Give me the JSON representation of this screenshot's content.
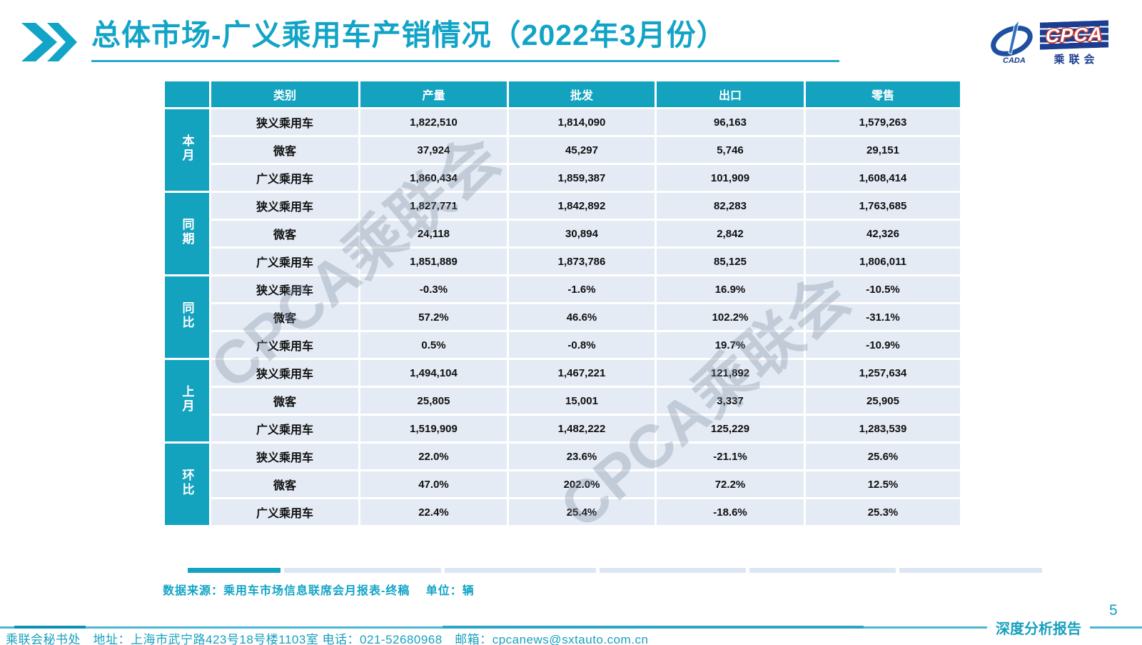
{
  "title": "总体市场-广义乘用车产销情况（2022年3月份）",
  "watermark_text": "CPCA乘联会",
  "logo": {
    "cada": "CADA",
    "cpca": "CPCA",
    "cpca_cn": "乘联会"
  },
  "table": {
    "columns": [
      "类别",
      "产量",
      "批发",
      "出口",
      "零售"
    ],
    "groups": [
      {
        "label": "本月",
        "rows": [
          {
            "category": "狭义乘用车",
            "values": [
              "1,822,510",
              "1,814,090",
              "96,163",
              "1,579,263"
            ]
          },
          {
            "category": "微客",
            "values": [
              "37,924",
              "45,297",
              "5,746",
              "29,151"
            ]
          },
          {
            "category": "广义乘用车",
            "values": [
              "1,860,434",
              "1,859,387",
              "101,909",
              "1,608,414"
            ]
          }
        ]
      },
      {
        "label": "同期",
        "rows": [
          {
            "category": "狭义乘用车",
            "values": [
              "1,827,771",
              "1,842,892",
              "82,283",
              "1,763,685"
            ]
          },
          {
            "category": "微客",
            "values": [
              "24,118",
              "30,894",
              "2,842",
              "42,326"
            ]
          },
          {
            "category": "广义乘用车",
            "values": [
              "1,851,889",
              "1,873,786",
              "85,125",
              "1,806,011"
            ]
          }
        ]
      },
      {
        "label": "同比",
        "rows": [
          {
            "category": "狭义乘用车",
            "values": [
              "-0.3%",
              "-1.6%",
              "16.9%",
              "-10.5%"
            ]
          },
          {
            "category": "微客",
            "values": [
              "57.2%",
              "46.6%",
              "102.2%",
              "-31.1%"
            ]
          },
          {
            "category": "广义乘用车",
            "values": [
              "0.5%",
              "-0.8%",
              "19.7%",
              "-10.9%"
            ]
          }
        ]
      },
      {
        "label": "上月",
        "rows": [
          {
            "category": "狭义乘用车",
            "values": [
              "1,494,104",
              "1,467,221",
              "121,892",
              "1,257,634"
            ]
          },
          {
            "category": "微客",
            "values": [
              "25,805",
              "15,001",
              "3,337",
              "25,905"
            ]
          },
          {
            "category": "广义乘用车",
            "values": [
              "1,519,909",
              "1,482,222",
              "125,229",
              "1,283,539"
            ]
          }
        ]
      },
      {
        "label": "环比",
        "rows": [
          {
            "category": "狭义乘用车",
            "values": [
              "22.0%",
              "23.6%",
              "-21.1%",
              "25.6%"
            ]
          },
          {
            "category": "微客",
            "values": [
              "47.0%",
              "202.0%",
              "72.2%",
              "12.5%"
            ]
          },
          {
            "category": "广义乘用车",
            "values": [
              "22.4%",
              "25.4%",
              "-18.6%",
              "25.3%"
            ]
          }
        ]
      }
    ]
  },
  "source_note": "数据来源：乘用车市场信息联席会月报表-终稿　 单位：辆",
  "footer": {
    "secretariat": "乘联会秘书处　地址：上海市武宁路423号18号楼1103室 电话：021-52680968　邮箱：cpcanews@sxtauto.com.cn",
    "report_label": "深度分析报告",
    "page_number": "5"
  },
  "colors": {
    "teal": "#14A3BF",
    "title_teal": "#12A4C6",
    "cell_bg": "#E4EBF5",
    "logo_navy": "#1C3E90",
    "logo_red": "#D0342C"
  }
}
